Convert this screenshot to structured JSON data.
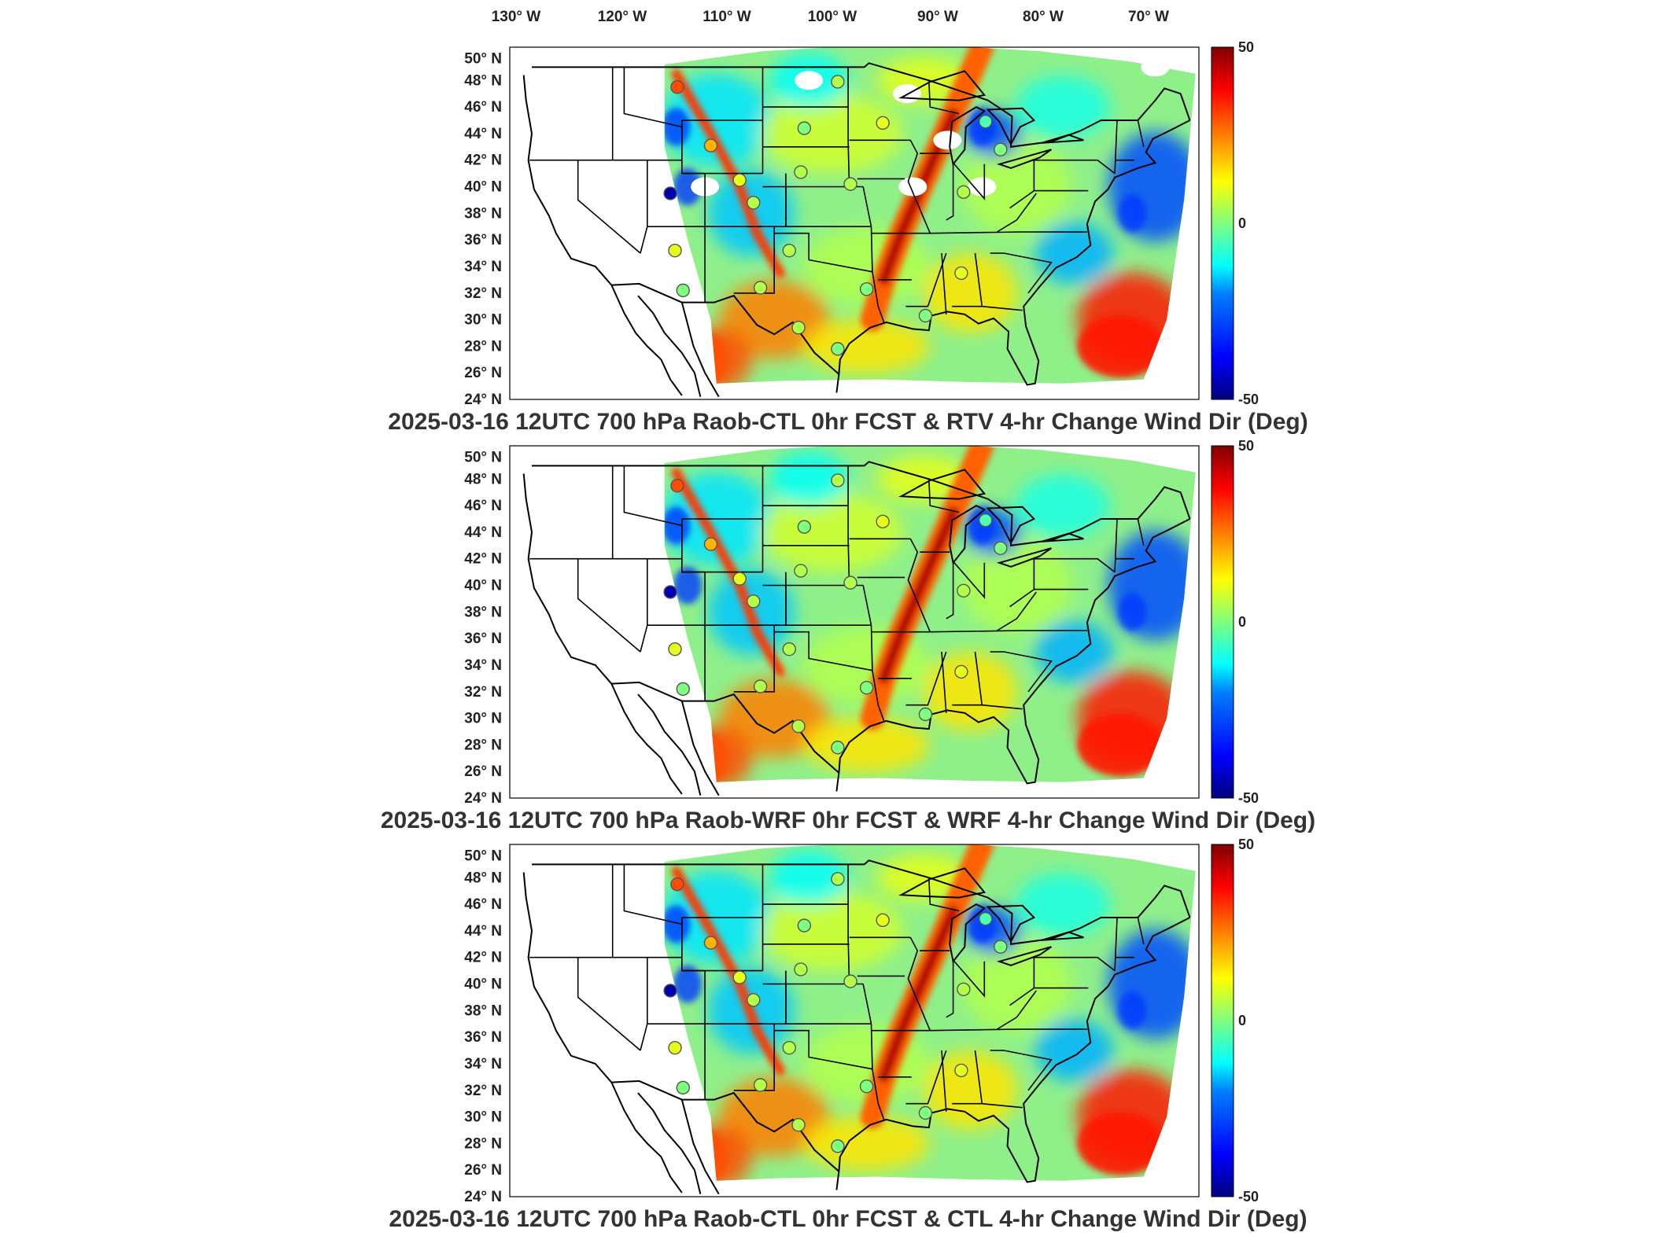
{
  "figure": {
    "lon_labels": [
      "130° W",
      "120° W",
      "110° W",
      "100° W",
      "90° W",
      "80° W",
      "70° W"
    ],
    "lat_labels": [
      "50° N",
      "48° N",
      "46° N",
      "44° N",
      "42° N",
      "40° N",
      "38° N",
      "36° N",
      "34° N",
      "32° N",
      "30° N",
      "28° N",
      "26° N",
      "24° N"
    ],
    "colorbar": {
      "ticks": [
        "50",
        "0",
        "-50"
      ],
      "range": [
        -50,
        50
      ],
      "colormap": [
        "#00007f",
        "#0000ff",
        "#007fff",
        "#00ffff",
        "#7fff7f",
        "#ffff00",
        "#ff7f00",
        "#ff0000",
        "#7f0000"
      ]
    },
    "colors": {
      "land_outline": "#000000",
      "frame": "#000000",
      "station_ring": "#555555"
    }
  },
  "panels": [
    {
      "id": "rtv",
      "title": "2025-03-16 12UTC 700 hPa Raob-CTL 0hr FCST & RTV 4-hr Change Wind Dir (Deg)",
      "has_missing_data": true
    },
    {
      "id": "wrf",
      "title": "2025-03-16 12UTC 700 hPa Raob-WRF 0hr FCST & WRF 4-hr Change Wind Dir (Deg)",
      "has_missing_data": false
    },
    {
      "id": "ctl",
      "title": "2025-03-16 12UTC 700 hPa Raob-CTL 0hr FCST & CTL 4-hr Change Wind Dir (Deg)",
      "has_missing_data": false
    }
  ],
  "stations": [
    {
      "lon": -111.4,
      "lat": 47.5,
      "value": 30
    },
    {
      "lon": -108.5,
      "lat": 43.1,
      "value": 20
    },
    {
      "lon": -100.4,
      "lat": 44.4,
      "value": 0
    },
    {
      "lon": -93.6,
      "lat": 44.8,
      "value": 10
    },
    {
      "lon": -97.5,
      "lat": 47.9,
      "value": 5
    },
    {
      "lon": -84.7,
      "lat": 44.9,
      "value": -5
    },
    {
      "lon": -83.4,
      "lat": 42.8,
      "value": 0
    },
    {
      "lon": -106.0,
      "lat": 40.5,
      "value": 10
    },
    {
      "lon": -100.7,
      "lat": 41.1,
      "value": 5
    },
    {
      "lon": -96.4,
      "lat": 40.2,
      "value": 5
    },
    {
      "lon": -112.0,
      "lat": 39.5,
      "value": -45
    },
    {
      "lon": -104.8,
      "lat": 38.8,
      "value": 5
    },
    {
      "lon": -86.6,
      "lat": 39.6,
      "value": 5
    },
    {
      "lon": -111.6,
      "lat": 35.2,
      "value": 10
    },
    {
      "lon": -101.7,
      "lat": 35.2,
      "value": 5
    },
    {
      "lon": -95.0,
      "lat": 32.3,
      "value": 0
    },
    {
      "lon": -86.8,
      "lat": 33.5,
      "value": 10
    },
    {
      "lon": -110.9,
      "lat": 32.2,
      "value": 0
    },
    {
      "lon": -104.2,
      "lat": 32.4,
      "value": 5
    },
    {
      "lon": -100.9,
      "lat": 29.4,
      "value": 5
    },
    {
      "lon": -97.5,
      "lat": 27.8,
      "value": 0
    },
    {
      "lon": -89.9,
      "lat": 30.3,
      "value": 0
    }
  ]
}
